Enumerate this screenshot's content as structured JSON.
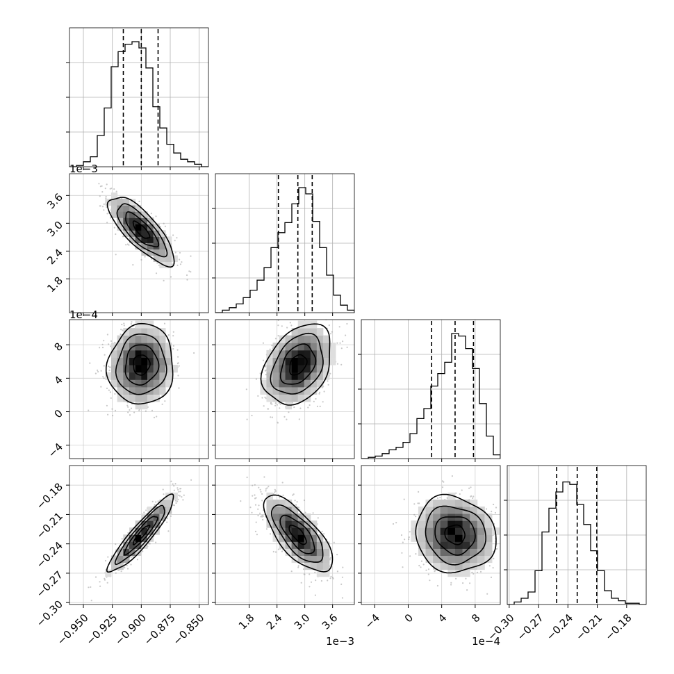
{
  "chart_data": {
    "type": "corner",
    "parameters": [
      {
        "range": [
          -0.962,
          -0.842
        ],
        "ticks": [
          -0.95,
          -0.925,
          -0.9,
          -0.875,
          -0.85
        ],
        "tick_labels": [
          "−0.950",
          "−0.925",
          "−0.900",
          "−0.875",
          "−0.850"
        ],
        "offset_label": "",
        "quantiles": [
          -0.9155,
          -0.9,
          -0.8855
        ],
        "histogram": [
          0,
          1,
          4,
          8,
          25,
          47,
          80,
          92,
          98,
          100,
          95,
          79,
          48,
          31,
          18,
          11,
          6,
          4,
          2,
          0
        ]
      },
      {
        "range": [
          1.07,
          4.07
        ],
        "ticks": [
          1.8,
          2.4,
          3.0,
          3.6
        ],
        "tick_labels": [
          "1.8",
          "2.4",
          "3.0",
          "3.6"
        ],
        "offset_label": "1e−3",
        "quantiles": [
          2.43,
          2.85,
          3.16
        ],
        "histogram": [
          0,
          2,
          4,
          7,
          12,
          18,
          26,
          36,
          52,
          64,
          72,
          87,
          100,
          95,
          73,
          52,
          30,
          14,
          6,
          2
        ]
      },
      {
        "range": [
          -5.6,
          11.0
        ],
        "ticks": [
          -4,
          0,
          4,
          8
        ],
        "tick_labels": [
          "−4",
          "0",
          "4",
          "8"
        ],
        "offset_label": "1e−4",
        "quantiles": [
          2.8,
          5.6,
          7.8
        ],
        "histogram": [
          0,
          1,
          2,
          4,
          7,
          9,
          13,
          20,
          32,
          40,
          58,
          68,
          77,
          100,
          98,
          88,
          72,
          44,
          18,
          3
        ]
      },
      {
        "range": [
          -0.302,
          -0.16
        ],
        "ticks": [
          -0.3,
          -0.27,
          -0.24,
          -0.21,
          -0.18
        ],
        "tick_labels": [
          "−0.30",
          "−0.27",
          "−0.24",
          "−0.21",
          "−0.18"
        ],
        "offset_label": "",
        "quantiles": [
          -0.2515,
          -0.2305,
          -0.2105
        ],
        "histogram": [
          0,
          2,
          5,
          10,
          27,
          58,
          77,
          90,
          98,
          96,
          80,
          64,
          43,
          27,
          11,
          5,
          3,
          1,
          1,
          0
        ]
      }
    ],
    "pairs": [
      {
        "x": 0,
        "y": 1,
        "center": [
          -0.9,
          2.85
        ],
        "sd": [
          0.0142,
          0.37
        ],
        "corr": -0.78
      },
      {
        "x": 0,
        "y": 2,
        "center": [
          -0.9,
          5.6
        ],
        "sd": [
          0.0142,
          2.4
        ],
        "corr": 0.05
      },
      {
        "x": 1,
        "y": 2,
        "center": [
          2.85,
          5.6
        ],
        "sd": [
          0.37,
          2.4
        ],
        "corr": 0.33
      },
      {
        "x": 0,
        "y": 3,
        "center": [
          -0.9,
          -0.2305
        ],
        "sd": [
          0.0142,
          0.0195
        ],
        "corr": 0.92
      },
      {
        "x": 1,
        "y": 3,
        "center": [
          2.85,
          -0.2305
        ],
        "sd": [
          0.37,
          0.0195
        ],
        "corr": -0.72
      },
      {
        "x": 2,
        "y": 3,
        "center": [
          5.6,
          -0.2305
        ],
        "sd": [
          2.4,
          0.0195
        ],
        "corr": -0.1
      }
    ],
    "contour_levels_sigma": [
      0.5,
      1.0,
      1.5,
      2.0
    ],
    "grid": true
  }
}
